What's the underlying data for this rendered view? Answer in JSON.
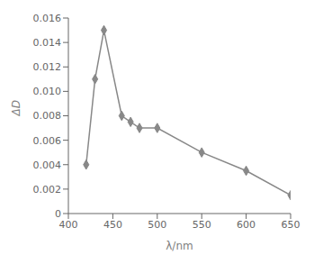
{
  "chart_data": {
    "type": "line",
    "xlabel": "λ/nm",
    "ylabel": "ΔD",
    "x": [
      420,
      430,
      440,
      460,
      470,
      480,
      500,
      550,
      600,
      650
    ],
    "values": [
      0.004,
      0.011,
      0.015,
      0.008,
      0.0075,
      0.007,
      0.007,
      0.005,
      0.0035,
      0.0015
    ],
    "color": "#888888",
    "marker": "diamond",
    "xlim": [
      400,
      650
    ],
    "ylim": [
      0,
      0.016
    ],
    "xticks": [
      400,
      450,
      500,
      550,
      600,
      650
    ],
    "yticks": [
      0,
      0.002,
      0.004,
      0.006,
      0.008,
      {
        "value": 0.01,
        "label": "0.010"
      },
      0.012,
      0.014,
      0.016
    ],
    "grid": false
  }
}
